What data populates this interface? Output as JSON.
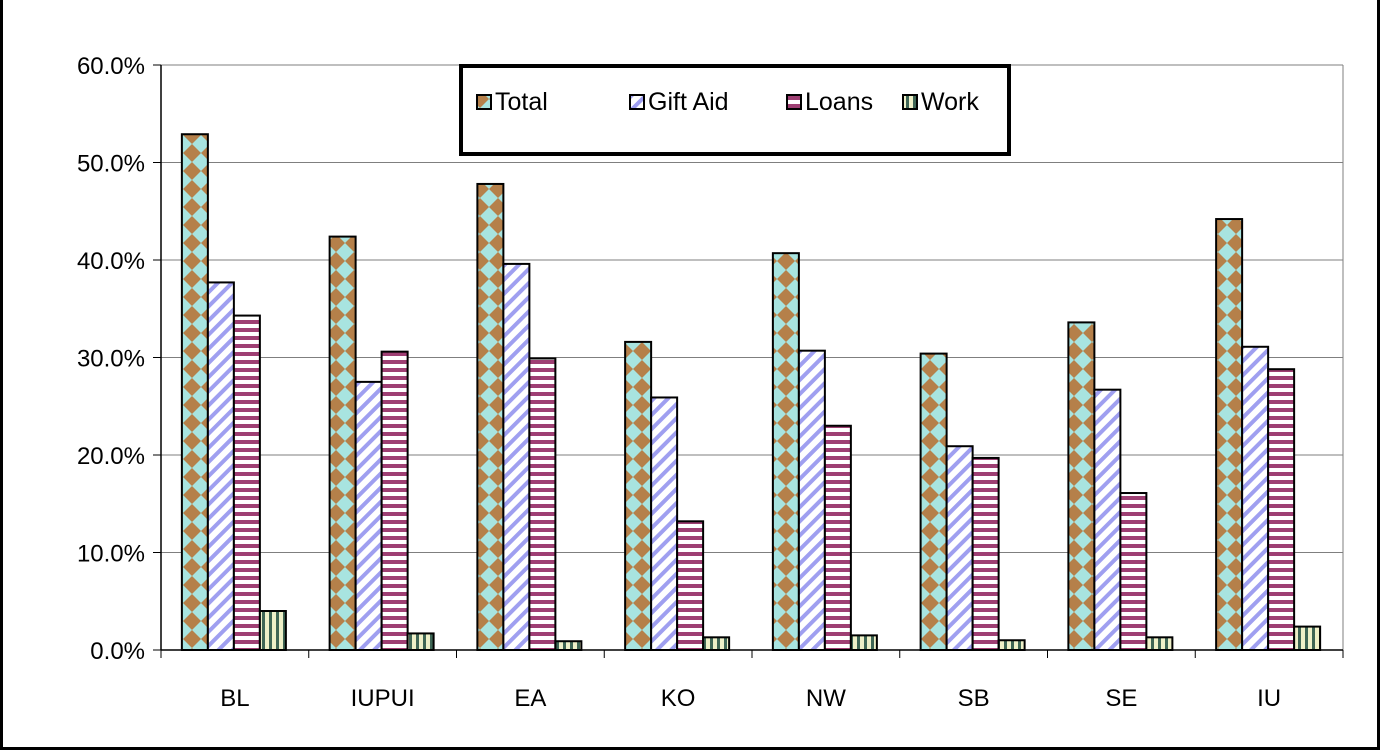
{
  "chart_data": {
    "type": "bar",
    "title": "",
    "xlabel": "",
    "ylabel": "",
    "ylim": [
      0,
      60
    ],
    "y_ticks": [
      0,
      10,
      20,
      30,
      40,
      50,
      60
    ],
    "y_tick_labels": [
      "0.0%",
      "10.0%",
      "20.0%",
      "30.0%",
      "40.0%",
      "50.0%",
      "60.0%"
    ],
    "grid": "horizontal",
    "legend_placement": "top-center",
    "categories": [
      "BL",
      "IUPUI",
      "EA",
      "KO",
      "NW",
      "SB",
      "SE",
      "IU"
    ],
    "series": [
      {
        "name": "Total",
        "values": [
          52.9,
          42.4,
          47.8,
          31.6,
          40.7,
          30.4,
          33.6,
          44.2
        ],
        "color": "#a8e4e0",
        "pattern": "diamonds",
        "pattern_color": "#b5804a"
      },
      {
        "name": "Gift Aid",
        "values": [
          37.7,
          27.5,
          39.6,
          25.9,
          30.7,
          20.9,
          26.7,
          31.1
        ],
        "color": "#ffffff",
        "pattern": "diagonal-stripes",
        "pattern_color": "#9f9ff0"
      },
      {
        "name": "Loans",
        "values": [
          34.3,
          30.6,
          29.9,
          13.2,
          23.0,
          19.7,
          16.1,
          28.8
        ],
        "color": "#ffffff",
        "pattern": "horizontal-stripes",
        "pattern_color": "#9e3f73"
      },
      {
        "name": "Work",
        "values": [
          4.0,
          1.7,
          0.9,
          1.3,
          1.5,
          1.0,
          1.3,
          2.4
        ],
        "color": "#eef0c8",
        "pattern": "vertical-stripes",
        "pattern_color": "#3f6655"
      }
    ]
  }
}
